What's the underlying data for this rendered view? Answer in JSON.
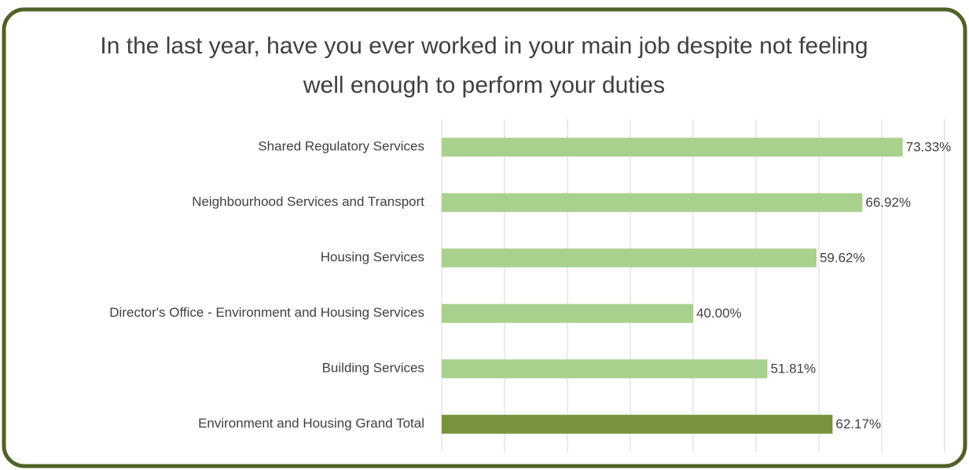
{
  "chart_data": {
    "type": "bar",
    "orientation": "horizontal",
    "title": "In the last year, have you ever worked in your main job despite not feeling well enough to perform your duties",
    "categories": [
      "Shared Regulatory Services",
      "Neighbourhood Services and Transport",
      "Housing Services",
      "Director's Office - Environment and Housing Services",
      "Building Services",
      "Environment and Housing Grand Total"
    ],
    "values": [
      73.33,
      66.92,
      59.62,
      40.0,
      51.81,
      62.17
    ],
    "value_labels": [
      "73.33%",
      "66.92%",
      "59.62%",
      "40.00%",
      "51.81%",
      "62.17%"
    ],
    "colors": [
      "#a9d18e",
      "#a9d18e",
      "#a9d18e",
      "#a9d18e",
      "#a9d18e",
      "#77933c"
    ],
    "xlim": [
      0,
      80
    ],
    "xticks": [
      0,
      10,
      20,
      30,
      40,
      50,
      60,
      70,
      80
    ],
    "grid": true
  }
}
